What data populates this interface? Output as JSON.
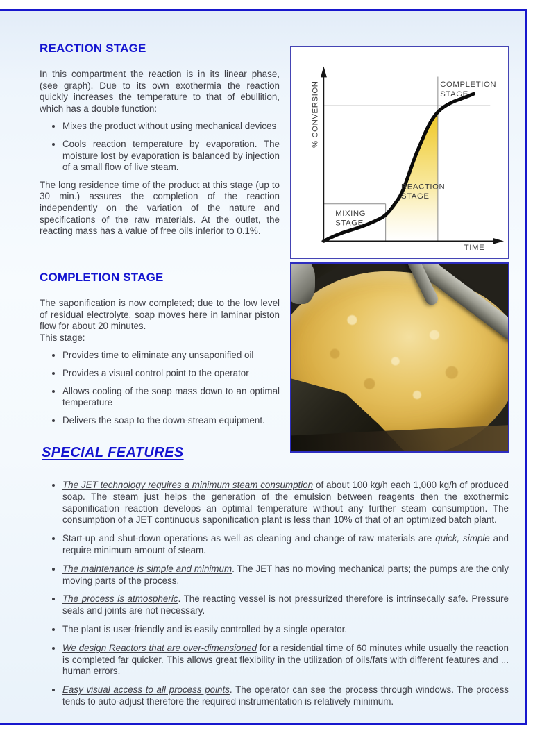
{
  "page": {
    "frame_color": "#1717cd",
    "accent_color": "#1414d0",
    "text_color": "#3e3e45",
    "background": "#ffffff"
  },
  "reaction_stage": {
    "heading": "REACTION STAGE",
    "intro": "In this compartment the reaction is in its linear phase, (see graph). Due to its own exothermia the reaction quickly increases the temperature to that of ebullition, which has a double function:",
    "bullets": [
      "Mixes the product without using mechanical devices",
      "Cools reaction temperature by evaporation. The moisture lost by evaporation is balanced by injection of a small flow of live steam."
    ],
    "outro": "The long residence time of the product at this stage (up to 30 min.) assures the completion of the reaction independently on the variation of the nature and specifications of the raw materials. At the outlet, the reacting mass has a value of free oils inferior to 0.1%."
  },
  "completion_stage": {
    "heading": "COMPLETION STAGE",
    "intro": "The saponification is now completed; due to the low level of residual electrolyte, soap moves here in laminar piston flow for about 20 minutes.",
    "intro2": "This stage:",
    "bullets": [
      "Provides time to eliminate any unsaponified oil",
      "Provides a visual control point to the operator",
      "Allows cooling of the soap mass down to an optimal temperature",
      "Delivers the soap to the down-stream equipment."
    ]
  },
  "special_features": {
    "heading": "SPECIAL FEATURES",
    "items": [
      [
        {
          "text": "The JET technology requires a minimum steam consumption",
          "style": "italic-underline"
        },
        {
          "text": " of about 100 kg/h each 1,000 kg/h of produced soap. The steam just helps the generation of the emulsion between reagents then the exothermic saponification reaction develops an optimal temperature without any further steam consumption. The consumption of a JET continuous saponification plant is less than 10% of that of an optimized batch plant.",
          "style": "plain"
        }
      ],
      [
        {
          "text": "Start-up and shut-down operations as well as cleaning and change of raw materials are ",
          "style": "plain"
        },
        {
          "text": "quick, simple",
          "style": "italic"
        },
        {
          "text": " and require minimum amount of steam.",
          "style": "plain"
        }
      ],
      [
        {
          "text": "The maintenance is simple and minimum",
          "style": "italic-underline"
        },
        {
          "text": ". The JET has no moving mechanical parts; the pumps are the only moving parts of the process.",
          "style": "plain"
        }
      ],
      [
        {
          "text": "The process is atmospheric",
          "style": "italic-underline"
        },
        {
          "text": ". The reacting vessel is not pressurized therefore is intrinsecally safe. Pressure seals and joints are not necessary.",
          "style": "plain"
        }
      ],
      [
        {
          "text": "The plant is user-friendly and is easily controlled by a single operator.",
          "style": "plain"
        }
      ],
      [
        {
          "text": "We design Reactors that are over-dimensioned",
          "style": "italic-underline"
        },
        {
          "text": " for a residential time of 60 minutes while usually the reaction is completed far quicker. This allows great flexibility in the utilization of oils/fats with different features and ... human errors.",
          "style": "plain"
        }
      ],
      [
        {
          "text": "Easy visual access to all process points",
          "style": "italic-underline"
        },
        {
          "text": ". The operator can see the process through windows. The process tends to auto-adjust therefore the required instrumentation is relatively minimum.",
          "style": "plain"
        }
      ]
    ]
  },
  "chart_data": {
    "type": "line",
    "title": "",
    "xlabel": "TIME",
    "ylabel": "% CONVERSION",
    "grid": false,
    "legend": false,
    "x_range_pct": [
      0,
      100
    ],
    "y_range_pct": [
      0,
      100
    ],
    "curve_pct": [
      [
        0,
        0
      ],
      [
        8,
        4
      ],
      [
        22,
        8
      ],
      [
        32,
        12
      ],
      [
        38,
        15
      ],
      [
        43,
        21
      ],
      [
        48,
        28
      ],
      [
        52,
        39
      ],
      [
        56,
        50
      ],
      [
        60,
        59
      ],
      [
        64,
        68
      ],
      [
        70,
        77
      ],
      [
        78,
        82
      ],
      [
        87,
        85
      ],
      [
        92,
        87
      ]
    ],
    "completion_level_pct": 80,
    "completion_x_pct": 70,
    "mixing_level_pct": 22,
    "mixing_x_pct": 38,
    "labels": {
      "mixing": "MIXING STAGE",
      "reaction": "REACTION STAGE",
      "completion": "COMPLETION STAGE"
    },
    "curve_color": "#0a0a0a",
    "guide_color": "#8a8a8a",
    "fill_color": "#eec51d"
  }
}
